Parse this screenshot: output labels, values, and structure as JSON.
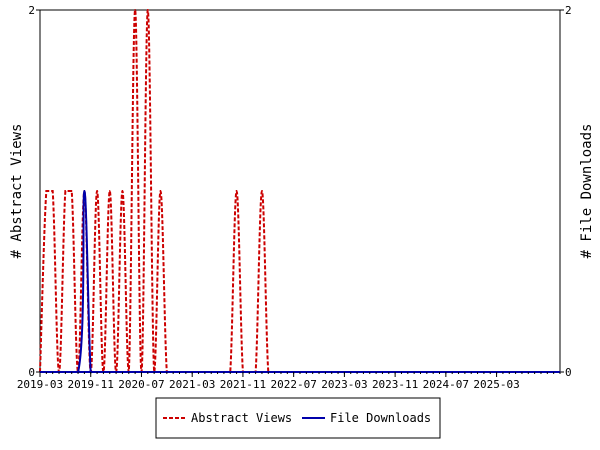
{
  "chart_data": {
    "type": "line",
    "xlabel": "",
    "ylabel_left": "# Abstract Views",
    "ylabel_right": "# File Downloads",
    "x_ticks": [
      "2019-03",
      "2019-11",
      "2020-07",
      "2021-03",
      "2021-11",
      "2022-07",
      "2023-03",
      "2023-11",
      "2024-07",
      "2025-03"
    ],
    "x_range": [
      "2019-03",
      "2026-01"
    ],
    "ylim_left": [
      0,
      2
    ],
    "ylim_right": [
      0,
      2
    ],
    "y_ticks_left": [
      "0",
      "2"
    ],
    "y_ticks_right": [
      "0",
      "2"
    ],
    "grid": false,
    "legend_position": "bottom-center",
    "series": [
      {
        "name": "Abstract Views",
        "color": "#cc0000",
        "style": "dashed",
        "axis": "left",
        "x": [
          "2019-03",
          "2019-04",
          "2019-05",
          "2019-06",
          "2019-07",
          "2019-08",
          "2019-09",
          "2019-10",
          "2019-11",
          "2019-12",
          "2020-01",
          "2020-02",
          "2020-03",
          "2020-04",
          "2020-05",
          "2020-06",
          "2020-07",
          "2020-08",
          "2020-09",
          "2020-10",
          "2020-11",
          "2020-12",
          "2021-01",
          "2021-02",
          "2021-03",
          "2021-04",
          "2021-05",
          "2021-06",
          "2021-07",
          "2021-08",
          "2021-09",
          "2021-10",
          "2021-11",
          "2021-12",
          "2022-01",
          "2022-02",
          "2022-03",
          "2022-04",
          "2022-05",
          "2022-06",
          "2022-07",
          "2026-01"
        ],
        "values": [
          0,
          1,
          1,
          0,
          1,
          1,
          0,
          1,
          0,
          1,
          0,
          1,
          0,
          1,
          0,
          2,
          0,
          2,
          0,
          1,
          0,
          0,
          0,
          0,
          0,
          0,
          0,
          0,
          0,
          0,
          0,
          1,
          0,
          0,
          0,
          1,
          0,
          0,
          0,
          0,
          0,
          0
        ]
      },
      {
        "name": "File Downloads",
        "color": "#0000aa",
        "style": "solid",
        "axis": "right",
        "x": [
          "2019-03",
          "2019-09",
          "2019-10",
          "2019-11",
          "2019-12",
          "2026-01"
        ],
        "values": [
          0,
          0,
          1,
          0,
          0,
          0
        ]
      }
    ]
  }
}
